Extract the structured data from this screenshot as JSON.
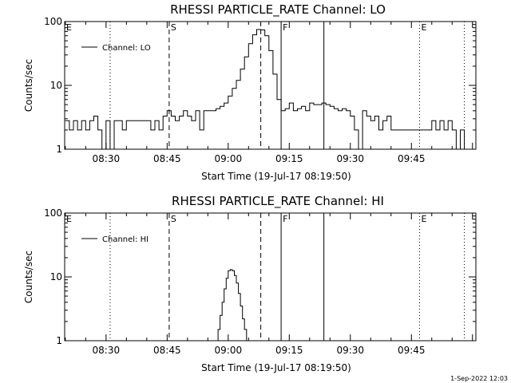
{
  "footer": {
    "timestamp": "1-Sep-2022 12:03"
  },
  "chart_data": [
    {
      "type": "line",
      "title": "RHESSI PARTICLE_RATE Channel: LO",
      "xlabel": "Start Time (19-Jul-17 08:19:50)",
      "ylabel": "Counts/sec",
      "y_scale": "log",
      "ylim": [
        1,
        100
      ],
      "xlim": [
        "08:19:50",
        "10:00:50"
      ],
      "x_ticks": [
        "08:30",
        "08:45",
        "09:00",
        "09:15",
        "09:30",
        "09:45"
      ],
      "y_ticks": [
        "1",
        "10",
        "100"
      ],
      "legend": {
        "position": "top-left",
        "entries": [
          "Channel: LO"
        ]
      },
      "markers": [
        {
          "label": "E",
          "time": "08:19:50",
          "style": "dotted"
        },
        {
          "label": "",
          "time": "08:31:00",
          "style": "dotted"
        },
        {
          "label": "S",
          "time": "08:45:30",
          "style": "dashed"
        },
        {
          "label": "",
          "time": "09:08:00",
          "style": "dashed"
        },
        {
          "label": "F",
          "time": "09:13:00",
          "style": "solid"
        },
        {
          "label": "",
          "time": "09:23:30",
          "style": "solid"
        },
        {
          "label": "E",
          "time": "09:47:00",
          "style": "dotted"
        },
        {
          "label": "",
          "time": "09:58:00",
          "style": "dotted"
        }
      ],
      "series": [
        {
          "name": "Channel: LO",
          "x": [
            "08:20",
            "08:21",
            "08:22",
            "08:23",
            "08:24",
            "08:25",
            "08:26",
            "08:27",
            "08:28",
            "08:29",
            "08:30",
            "08:31",
            "08:32",
            "08:33",
            "08:34",
            "08:35",
            "08:36",
            "08:37",
            "08:38",
            "08:39",
            "08:40",
            "08:41",
            "08:42",
            "08:43",
            "08:44",
            "08:45",
            "08:46",
            "08:47",
            "08:48",
            "08:49",
            "08:50",
            "08:51",
            "08:52",
            "08:53",
            "08:54",
            "08:55",
            "08:56",
            "08:57",
            "08:58",
            "08:59",
            "09:00",
            "09:01",
            "09:02",
            "09:03",
            "09:04",
            "09:05",
            "09:06",
            "09:07",
            "09:08",
            "09:09",
            "09:10",
            "09:11",
            "09:12",
            "09:13",
            "09:14",
            "09:15",
            "09:16",
            "09:17",
            "09:18",
            "09:19",
            "09:20",
            "09:21",
            "09:22",
            "09:23",
            "09:24",
            "09:25",
            "09:26",
            "09:27",
            "09:28",
            "09:29",
            "09:30",
            "09:31",
            "09:32",
            "09:33",
            "09:34",
            "09:35",
            "09:36",
            "09:37",
            "09:38",
            "09:39",
            "09:40",
            "09:41",
            "09:42",
            "09:43",
            "09:44",
            "09:45",
            "09:46",
            "09:47",
            "09:48",
            "09:49",
            "09:50",
            "09:51",
            "09:52",
            "09:53",
            "09:54",
            "09:55",
            "09:56",
            "09:57",
            "09:58"
          ],
          "y": [
            2.8,
            2.0,
            2.8,
            2.0,
            2.8,
            2.0,
            2.8,
            3.3,
            2.0,
            1.0,
            2.8,
            1.0,
            2.8,
            2.8,
            2.0,
            2.8,
            2.8,
            2.8,
            2.8,
            2.8,
            2.8,
            2.0,
            2.8,
            2.0,
            3.3,
            4.0,
            3.3,
            2.8,
            3.3,
            4.0,
            3.3,
            2.8,
            4.0,
            2.0,
            4.0,
            4.0,
            4.0,
            4.3,
            4.7,
            5.3,
            6.8,
            9.0,
            12.0,
            18.0,
            28.0,
            45.0,
            62.0,
            75.0,
            74.0,
            60.0,
            35.0,
            15.0,
            6.0,
            4.0,
            4.3,
            5.3,
            4.0,
            4.3,
            4.7,
            4.0,
            5.3,
            5.0,
            5.0,
            5.3,
            5.0,
            4.7,
            4.3,
            4.0,
            4.3,
            4.0,
            3.3,
            2.0,
            1.0,
            4.0,
            3.3,
            2.8,
            3.3,
            2.0,
            2.8,
            3.3,
            2.0,
            2.0,
            2.0,
            2.0,
            2.0,
            2.0,
            2.0,
            2.0,
            2.0,
            2.0,
            2.8,
            2.0,
            2.8,
            2.0,
            2.8,
            2.0,
            1.0,
            2.0,
            1.0
          ]
        }
      ]
    },
    {
      "type": "line",
      "title": "RHESSI PARTICLE_RATE Channel: HI",
      "xlabel": "Start Time (19-Jul-17 08:19:50)",
      "ylabel": "Counts/sec",
      "y_scale": "log",
      "ylim": [
        1,
        100
      ],
      "xlim": [
        "08:19:50",
        "10:00:50"
      ],
      "x_ticks": [
        "08:30",
        "08:45",
        "09:00",
        "09:15",
        "09:30",
        "09:45"
      ],
      "y_ticks": [
        "1",
        "10",
        "100"
      ],
      "legend": {
        "position": "top-left",
        "entries": [
          "Channel: HI"
        ]
      },
      "markers": [
        {
          "label": "E",
          "time": "08:19:50",
          "style": "dotted"
        },
        {
          "label": "",
          "time": "08:31:00",
          "style": "dotted"
        },
        {
          "label": "S",
          "time": "08:45:30",
          "style": "dashed"
        },
        {
          "label": "",
          "time": "09:08:00",
          "style": "dashed"
        },
        {
          "label": "F",
          "time": "09:13:00",
          "style": "solid"
        },
        {
          "label": "",
          "time": "09:23:30",
          "style": "solid"
        },
        {
          "label": "E",
          "time": "09:47:00",
          "style": "dotted"
        },
        {
          "label": "",
          "time": "09:58:00",
          "style": "dotted"
        }
      ],
      "series": [
        {
          "name": "Channel: HI",
          "x": [
            "08:57:00",
            "08:57:30",
            "08:58:00",
            "08:58:30",
            "08:59:00",
            "08:59:30",
            "09:00:00",
            "09:00:30",
            "09:01:00",
            "09:01:30",
            "09:02:00",
            "09:02:30",
            "09:03:00",
            "09:03:30",
            "09:04:00",
            "09:04:30"
          ],
          "y": [
            1.0,
            1.5,
            2.5,
            4.0,
            6.5,
            9.5,
            12.5,
            13.0,
            12.5,
            10.5,
            8.0,
            5.5,
            3.5,
            2.2,
            1.5,
            1.0
          ]
        }
      ]
    }
  ]
}
